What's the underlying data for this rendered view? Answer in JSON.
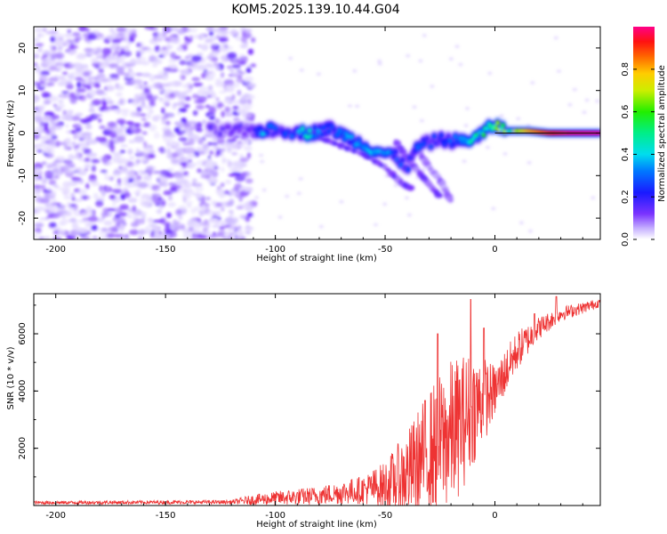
{
  "title": "KOM5.2025.139.10.44.G04",
  "chart_data": [
    {
      "type": "heatmap",
      "xlabel": "Height of straight line (km)",
      "ylabel": "Frequency (Hz)",
      "xlim": [
        -210,
        48
      ],
      "ylim": [
        -25,
        25
      ],
      "x_ticks": [
        -200,
        -150,
        -100,
        -50,
        0
      ],
      "y_ticks": [
        -20,
        -10,
        0,
        10,
        20
      ],
      "colorbar": {
        "label": "Normalized spectral amplitude",
        "range": [
          0,
          1
        ],
        "ticks": [
          0.0,
          0.2,
          0.4,
          0.6,
          0.8
        ],
        "colormap": "rainbow (purple-blue-cyan-green-yellow-red-magenta)"
      },
      "noise_region": {
        "x_range": [
          -210,
          -110
        ],
        "y_range": [
          -25,
          25
        ],
        "amplitude": [
          0.02,
          0.15
        ]
      },
      "signal_track": [
        {
          "x": -130,
          "freq": 0.5,
          "amp": 0.12
        },
        {
          "x": -110,
          "freq": 0.5,
          "amp": 0.15
        },
        {
          "x": -105,
          "freq": 0.7,
          "amp": 0.32
        },
        {
          "x": -95,
          "freq": 0.5,
          "amp": 0.2
        },
        {
          "x": -85,
          "freq": 0.0,
          "amp": 0.38
        },
        {
          "x": -75,
          "freq": 1.0,
          "amp": 0.22
        },
        {
          "x": -65,
          "freq": -1.5,
          "amp": 0.28
        },
        {
          "x": -55,
          "freq": -4.0,
          "amp": 0.3
        },
        {
          "x": -45,
          "freq": -5.5,
          "amp": 0.28
        },
        {
          "x": -40,
          "freq": -8.0,
          "amp": 0.2
        },
        {
          "x": -35,
          "freq": -3.0,
          "amp": 0.22
        },
        {
          "x": -25,
          "freq": -1.5,
          "amp": 0.2
        },
        {
          "x": -15,
          "freq": -2.0,
          "amp": 0.3
        },
        {
          "x": -8,
          "freq": -1.0,
          "amp": 0.4
        },
        {
          "x": -3,
          "freq": 1.0,
          "amp": 0.45
        },
        {
          "x": 0,
          "freq": 2.0,
          "amp": 0.55
        },
        {
          "x": 5,
          "freq": 0.5,
          "amp": 0.5
        },
        {
          "x": 15,
          "freq": 0.5,
          "amp": 0.8
        },
        {
          "x": 25,
          "freq": 0.0,
          "amp": 0.92
        },
        {
          "x": 35,
          "freq": 0.0,
          "amp": 0.98
        },
        {
          "x": 48,
          "freq": 0.0,
          "amp": 1.0
        }
      ],
      "secondary_tracks": [
        {
          "x": [
            -80,
            -70,
            -60,
            -50,
            -42,
            -38
          ],
          "freq": [
            -1,
            -3,
            -5,
            -8,
            -12,
            -13
          ],
          "amp": 0.12
        },
        {
          "x": [
            -45,
            -40,
            -35,
            -30,
            -25
          ],
          "freq": [
            -2,
            -6,
            -9,
            -12,
            -15
          ],
          "amp": 0.1
        },
        {
          "x": [
            -35,
            -30,
            -25,
            -22,
            -20
          ],
          "freq": [
            -4,
            -8,
            -11,
            -14,
            -16
          ],
          "amp": 0.08
        }
      ]
    },
    {
      "type": "line",
      "xlabel": "Height of straight line (km)",
      "ylabel": "SNR (10 * v/v)",
      "xlim": [
        -210,
        48
      ],
      "ylim": [
        0,
        7400
      ],
      "x_ticks": [
        -200,
        -150,
        -100,
        -50,
        0
      ],
      "y_ticks": [
        2000,
        4000,
        6000
      ],
      "series_color": "#ee3333",
      "envelope": {
        "x": [
          -210,
          -120,
          -110,
          -100,
          -80,
          -60,
          -50,
          -40,
          -30,
          -20,
          -15,
          -10,
          -5,
          0,
          10,
          20,
          30,
          40,
          48
        ],
        "base": [
          100,
          120,
          200,
          250,
          350,
          550,
          700,
          1100,
          1900,
          2500,
          2900,
          3400,
          3700,
          4000,
          5400,
          6200,
          6700,
          6900,
          7100
        ],
        "amplitude": [
          60,
          70,
          180,
          250,
          330,
          500,
          850,
          1500,
          2200,
          2600,
          2400,
          2000,
          1500,
          900,
          700,
          400,
          250,
          200,
          150
        ]
      },
      "peaks": [
        {
          "x": -26,
          "y": 6000
        },
        {
          "x": -11,
          "y": 7200
        },
        {
          "x": -5,
          "y": 6200
        },
        {
          "x": 18,
          "y": 6700
        },
        {
          "x": 28,
          "y": 7300
        }
      ]
    }
  ]
}
